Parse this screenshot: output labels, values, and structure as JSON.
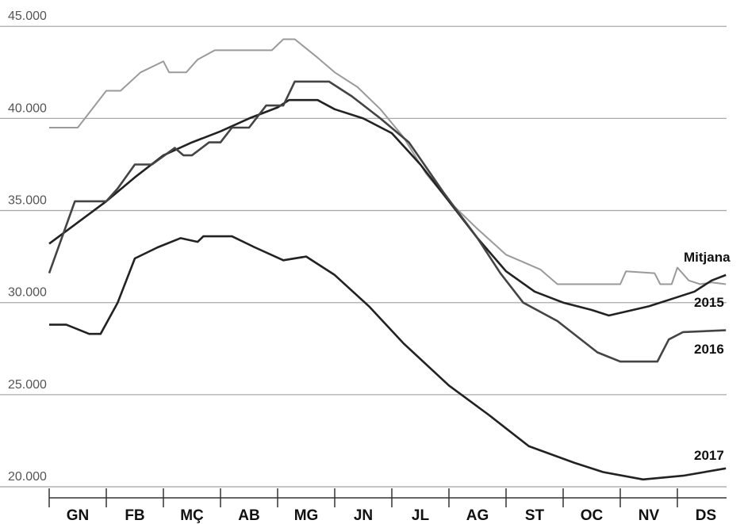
{
  "chart_data": {
    "type": "line",
    "categories": [
      "GN",
      "FB",
      "MÇ",
      "AB",
      "MG",
      "JN",
      "JL",
      "AG",
      "ST",
      "OC",
      "NV",
      "DS"
    ],
    "xlim": [
      0,
      12
    ],
    "ylim": [
      19400,
      46000
    ],
    "yticks": [
      {
        "value": 20000,
        "label": "20.000"
      },
      {
        "value": 25000,
        "label": "25.000"
      },
      {
        "value": 30000,
        "label": "30.000"
      },
      {
        "value": 35000,
        "label": "35.000"
      },
      {
        "value": 40000,
        "label": "40.000"
      },
      {
        "value": 45000,
        "label": "45.000"
      }
    ],
    "grid": true,
    "series": [
      {
        "name": "Mitjana",
        "color": "#9a9a9a",
        "x": [
          0,
          0.5,
          1.0,
          1.25,
          1.6,
          2.0,
          2.1,
          2.4,
          2.6,
          2.9,
          3.9,
          4.1,
          4.3,
          4.7,
          5.0,
          5.4,
          5.8,
          6.2,
          6.6,
          7.0,
          7.5,
          8.0,
          8.3,
          8.6,
          8.9,
          10.0,
          10.1,
          10.6,
          10.7,
          10.9,
          11.0,
          11.2,
          11.4,
          11.6,
          11.85
        ],
        "values": [
          39500,
          39500,
          41500,
          41500,
          42500,
          43100,
          42500,
          42500,
          43200,
          43700,
          43700,
          44300,
          44300,
          43300,
          42500,
          41700,
          40500,
          39000,
          37000,
          35500,
          34000,
          32600,
          32200,
          31800,
          31000,
          31000,
          31700,
          31600,
          31000,
          31000,
          31900,
          31200,
          31000,
          31100,
          31000
        ]
      },
      {
        "name": "2015",
        "color": "#222222",
        "x": [
          0,
          1.0,
          1.5,
          2.0,
          2.5,
          3.0,
          3.5,
          4.0,
          4.2,
          4.7,
          5.0,
          5.5,
          6.0,
          6.5,
          7.0,
          7.5,
          8.0,
          8.5,
          9.0,
          9.5,
          9.8,
          10.5,
          11.0,
          11.3,
          11.6,
          11.85
        ],
        "values": [
          33200,
          35500,
          36800,
          38000,
          38700,
          39300,
          40000,
          40600,
          41000,
          41000,
          40500,
          40000,
          39200,
          37500,
          35500,
          33500,
          31700,
          30600,
          30000,
          29600,
          29300,
          29800,
          30300,
          30600,
          31200,
          31500
        ]
      },
      {
        "name": "2016",
        "color": "#444444",
        "x": [
          0,
          0.45,
          1.0,
          1.2,
          1.5,
          1.8,
          2.2,
          2.35,
          2.5,
          2.8,
          3.0,
          3.2,
          3.5,
          3.8,
          4.1,
          4.3,
          4.9,
          5.3,
          5.8,
          6.3,
          6.9,
          7.5,
          7.9,
          8.3,
          8.9,
          9.6,
          10.0,
          10.65,
          10.85,
          11.1,
          11.85
        ],
        "values": [
          31600,
          35500,
          35500,
          36200,
          37500,
          37500,
          38400,
          38000,
          38000,
          38700,
          38700,
          39500,
          39500,
          40700,
          40700,
          42000,
          42000,
          41200,
          40000,
          38700,
          36000,
          33500,
          31600,
          30000,
          29000,
          27300,
          26800,
          26800,
          28000,
          28400,
          28500
        ]
      },
      {
        "name": "2017",
        "color": "#222222",
        "x": [
          0,
          0.3,
          0.7,
          0.9,
          1.2,
          1.5,
          1.9,
          2.3,
          2.6,
          2.7,
          3.2,
          3.6,
          4.1,
          4.5,
          5.0,
          5.6,
          6.2,
          7.0,
          7.7,
          8.4,
          9.2,
          9.7,
          10.4,
          11.1,
          11.85
        ],
        "values": [
          28800,
          28800,
          28300,
          28300,
          30000,
          32400,
          33000,
          33500,
          33300,
          33600,
          33600,
          33000,
          32300,
          32500,
          31500,
          29800,
          27800,
          25500,
          23900,
          22200,
          21300,
          20800,
          20400,
          20600,
          21000
        ]
      }
    ]
  }
}
